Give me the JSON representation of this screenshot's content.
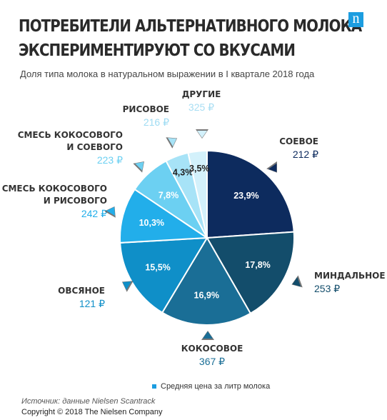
{
  "header": {
    "title_line1": "ПОТРЕБИТЕЛИ АЛЬТЕРНАТИВНОГО МОЛОКА",
    "title_line2": "ЭКСПЕРИМЕНТИРУЮТ СО ВКУСАМИ",
    "subtitle": "Доля типа молока в натуральном выражении в I квартале 2018 года",
    "logo_letter": "n"
  },
  "legend": {
    "label": "Средняя цена за литр молока"
  },
  "footer": {
    "source": "Источник: данные Nielsen Scantrack",
    "copyright": "Copyright © 2018 The Nielsen Company"
  },
  "colors": {
    "accent": "#1c9de0",
    "dark_navy": "#0d2b5e"
  },
  "chart_data": {
    "type": "pie",
    "title": "Доля типа молока в натуральном выражении в I квартале 2018 года",
    "legend": "Средняя цена за литр молока",
    "slices": [
      {
        "label": "СОЕВОЕ",
        "lines": [
          "СОЕВОЕ"
        ],
        "pct_label": "23,9%",
        "value": 23.9,
        "price": "212 ₽",
        "color": "#0d2b5e",
        "label_color": "#ffffff",
        "price_color": "#0d2b5e"
      },
      {
        "label": "МИНДАЛЬНОЕ",
        "lines": [
          "МИНДАЛЬНОЕ"
        ],
        "pct_label": "17,8%",
        "value": 17.8,
        "price": "253 ₽",
        "color": "#134d6b",
        "label_color": "#ffffff",
        "price_color": "#134d6b"
      },
      {
        "label": "КОКОСОВОЕ",
        "lines": [
          "КОКОСОВОЕ"
        ],
        "pct_label": "16,9%",
        "value": 16.9,
        "price": "367 ₽",
        "color": "#1a6e96",
        "label_color": "#ffffff",
        "price_color": "#1a6e96"
      },
      {
        "label": "ОВСЯНОЕ",
        "lines": [
          "ОВСЯНОЕ"
        ],
        "pct_label": "15,5%",
        "value": 15.5,
        "price": "121 ₽",
        "color": "#0f8fc8",
        "label_color": "#ffffff",
        "price_color": "#0f8fc8"
      },
      {
        "label": "СМЕСЬ КОКОСОВОГО И РИСОВОГО",
        "lines": [
          "СМЕСЬ КОКОСОВОГО",
          "И РИСОВОГО"
        ],
        "pct_label": "10,3%",
        "value": 10.3,
        "price": "242 ₽",
        "color": "#22aeea",
        "label_color": "#ffffff",
        "price_color": "#22aeea"
      },
      {
        "label": "СМЕСЬ КОКОСОВОГО И СОЕВОГО",
        "lines": [
          "СМЕСЬ КОКОСОВОГО",
          "И СОЕВОГО"
        ],
        "pct_label": "7,8%",
        "value": 7.8,
        "price": "223 ₽",
        "color": "#6cd0f2",
        "label_color": "#ffffff",
        "price_color": "#6cd0f2"
      },
      {
        "label": "РИСОВОЕ",
        "lines": [
          "РИСОВОЕ"
        ],
        "pct_label": "4,3%",
        "value": 4.3,
        "price": "216 ₽",
        "color": "#a7e3f7",
        "label_color": "#222222",
        "price_color": "#9fdcf3"
      },
      {
        "label": "ДРУГИЕ",
        "lines": [
          "ДРУГИЕ"
        ],
        "pct_label": "3,5%",
        "value": 3.5,
        "price": "325 ₽",
        "color": "#d3f1fb",
        "label_color": "#222222",
        "price_color": "#a8def3"
      }
    ]
  }
}
